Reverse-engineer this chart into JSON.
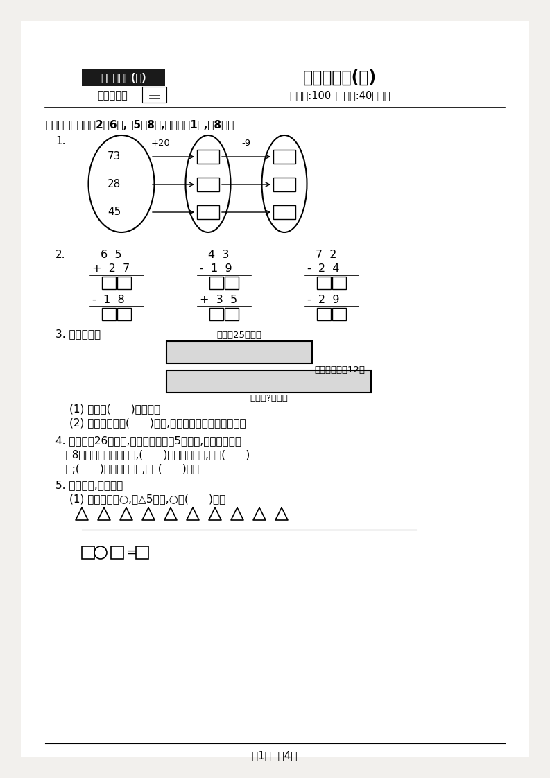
{
  "bg_color": "#ffffff",
  "page_bg": "#e8e6e0",
  "title_box_text": "二年级数学(上)",
  "title_box_bg": "#1a1a1a",
  "title_box_color": "#ffffff",
  "subtitle_left": "（江苏版）",
  "title_main": "分类测评卷(一)",
  "subtitle_right": "（满分:100分  时间:40分钟）",
  "section1_title": "一、填一填。（第2题6分,第5题8分,其余每稀1分,兲8分）",
  "q1_label": "1.",
  "q1_numbers": [
    "73",
    "28",
    "45"
  ],
  "q1_op1": "+20",
  "q1_op2": "-9",
  "q2_label": "2.",
  "q2_data": [
    {
      "top": "6  5",
      "op1": "+  2  7",
      "op2": "-  1  8"
    },
    {
      "top": "4  3",
      "op1": "-  1  9",
      "op2": "+  3  5"
    },
    {
      "top": "7  2",
      "op1": "-  2  4",
      "op2": "-  2  9"
    }
  ],
  "q3_label": "3. 看图填空。",
  "q3_label1": "小丽有25张卡片",
  "q3_label2": "小明比小丽多12张",
  "q3_label3": "小明有?张卡片",
  "q3_q1": "(1) 小明有(      )张卡片。",
  "q3_q2": "(2) 小明送给小丽(      )张后,两人的卡片张数就同样多。",
  "q4_label": "4. 小文写了26个大字,小丽比小文多写5个大字,小明比小文少",
  "q4_line2": "   写8个大字。三个人相比,(      )写的大字最多,写了(      )",
  "q4_line3": "   个;(      )写的大字最少,写了(      )个。",
  "q5_label": "5. 先画一画,再解答。",
  "q5_q1": "(1) 在横线上画○,比△5个少,○有(      )个。",
  "q5_triangles_count": 10,
  "q5_equation": "□○□=□",
  "footer": "第1页  关4页"
}
